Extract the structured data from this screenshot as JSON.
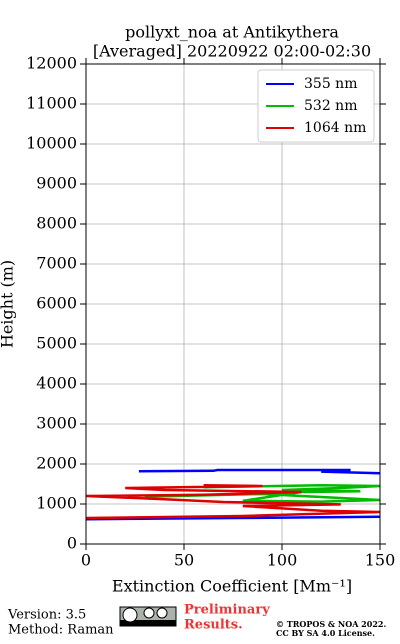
{
  "chart_data": {
    "type": "line",
    "title": "pollyxt_noa at Antikythera",
    "subtitle": "[Averaged] 20220922 02:00-02:30",
    "x_label": "Extinction Coefficient [Mm⁻¹]",
    "y_label": "Height (m)",
    "xlim": [
      0,
      150
    ],
    "xticks": [
      0,
      50,
      100,
      150
    ],
    "ylim": [
      0,
      12000
    ],
    "yticks": [
      0,
      1000,
      2000,
      3000,
      4000,
      5000,
      6000,
      7000,
      8000,
      9000,
      10000,
      11000,
      12000
    ],
    "grid": true,
    "legend": "upper right",
    "series": [
      {
        "name": "355 nm",
        "color": "#0000ff",
        "x": [
          0,
          75,
          150,
          null,
          27,
          65,
          67,
          135,
          120,
          150
        ],
        "values": [
          620,
          650,
          680,
          null,
          1820,
          1830,
          1850,
          1850,
          1810,
          1770
        ]
      },
      {
        "name": "532 nm",
        "color": "#00bb00",
        "x": [
          40,
          30,
          90,
          150,
          120,
          80,
          110,
          140,
          100,
          130,
          150,
          120,
          60
        ],
        "values": [
          1200,
          1180,
          1250,
          1100,
          1060,
          1080,
          1300,
          1320,
          1350,
          1400,
          1450,
          1470,
          1420
        ]
      },
      {
        "name": "1064 nm",
        "color": "#dd0000",
        "x": [
          0,
          80,
          150,
          120,
          80,
          130,
          70,
          40,
          0,
          60,
          110,
          40,
          20,
          90,
          60
        ],
        "values": [
          650,
          700,
          800,
          830,
          950,
          990,
          1050,
          1120,
          1200,
          1230,
          1300,
          1350,
          1400,
          1450,
          1470
        ]
      }
    ]
  },
  "footer": {
    "version": "Version: 3.5",
    "method": "Method: Raman",
    "notice": [
      "Preliminary",
      "Results."
    ],
    "copyright": [
      "© TROPOS & NOA 2022.",
      "CC BY SA 4.0 License."
    ]
  }
}
